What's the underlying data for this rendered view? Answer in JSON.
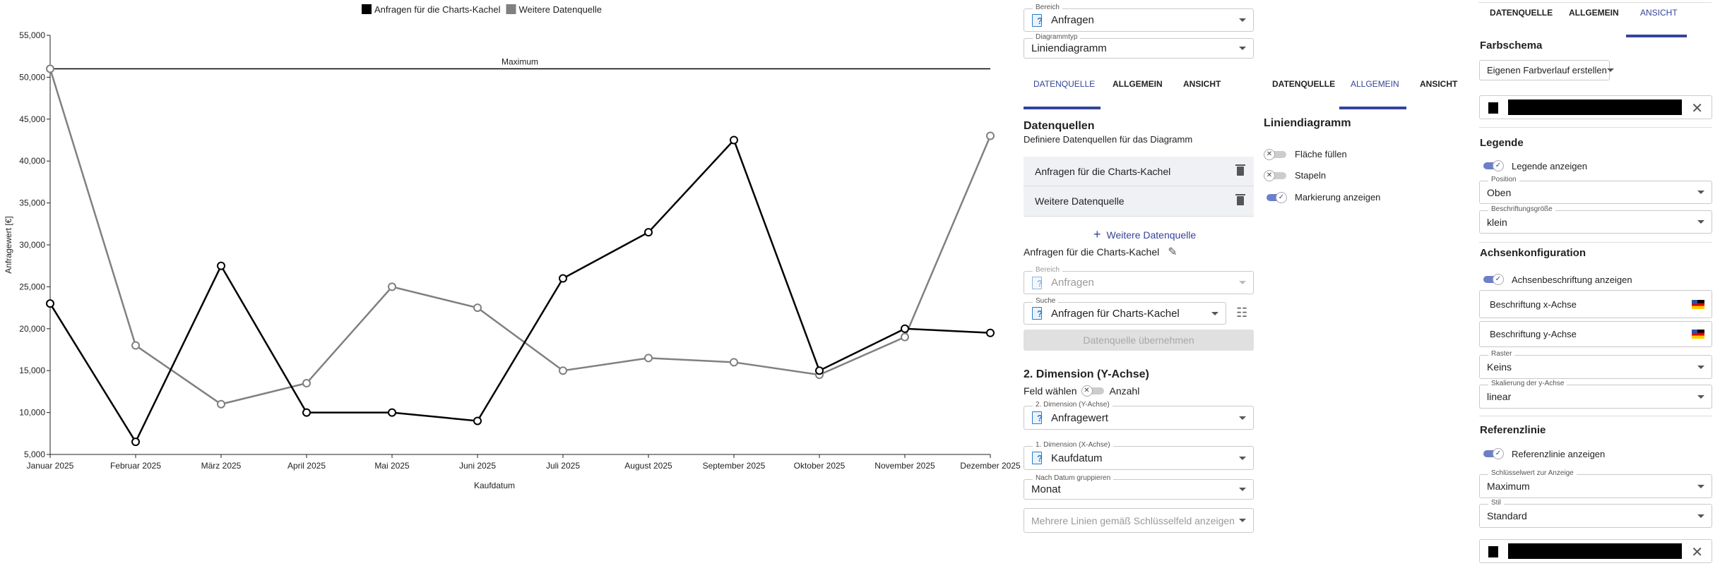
{
  "chart_data": {
    "type": "line",
    "categories": [
      "Januar 2025",
      "Februar 2025",
      "März 2025",
      "April 2025",
      "Mai 2025",
      "Juni 2025",
      "Juli 2025",
      "August 2025",
      "September 2025",
      "Oktober 2025",
      "November 2025",
      "Dezember 2025"
    ],
    "series": [
      {
        "name": "Anfragen für die Charts-Kachel",
        "color": "#000000",
        "values": [
          23000,
          6500,
          27500,
          10000,
          10000,
          9000,
          26000,
          31500,
          42500,
          15000,
          20000,
          19500
        ]
      },
      {
        "name": "Weitere Datenquelle",
        "color": "#808080",
        "values": [
          51000,
          18000,
          11000,
          13500,
          25000,
          22500,
          15000,
          16500,
          16000,
          14500,
          19000,
          43000
        ]
      }
    ],
    "xlabel": "Kaufdatum",
    "ylabel": "Anfragewert [€]",
    "ylim": [
      5000,
      55000
    ],
    "yticks": [
      "5,000",
      "10,000",
      "15,000",
      "20,000",
      "25,000",
      "30,000",
      "35,000",
      "40,000",
      "45,000",
      "50,000",
      "55,000"
    ],
    "reference_line": {
      "label": "Maximum",
      "value": 51000
    },
    "grid": false,
    "legend_position": "top",
    "markers": true
  },
  "panel1": {
    "bereich_label": "Bereich",
    "bereich_value": "Anfragen",
    "typ_label": "Diagrammtyp",
    "typ_value": "Liniendiagramm",
    "tabs": [
      "DATENQUELLE",
      "ALLGEMEIN",
      "ANSICHT"
    ],
    "heading": "Datenquellen",
    "subtitle": "Definiere Datenquellen für das Diagramm",
    "sources": [
      "Anfragen für die Charts-Kachel",
      "Weitere Datenquelle"
    ],
    "add_source": "Weitere Datenquelle",
    "selected_source": "Anfragen für die Charts-Kachel",
    "src_bereich_label": "Bereich",
    "src_bereich_value": "Anfragen",
    "suche_label": "Suche",
    "suche_value": "Anfragen für Charts-Kachel",
    "apply_button": "Datenquelle übernehmen",
    "dim_heading": "2. Dimension (Y-Achse)",
    "feld_waehlen": "Feld wählen",
    "anzahl": "Anzahl",
    "dim2_label": "2. Dimension (Y-Achse)",
    "dim2_value": "Anfragewert",
    "dim1_label": "1. Dimension (X-Achse)",
    "dim1_value": "Kaufdatum",
    "group_label": "Nach Datum gruppieren",
    "group_value": "Monat",
    "multi_placeholder": "Mehrere Linien gemäß Schlüsselfeld anzeigen"
  },
  "panel2": {
    "tabs": [
      "DATENQUELLE",
      "ALLGEMEIN",
      "ANSICHT"
    ],
    "heading": "Liniendiagramm",
    "toggles": [
      {
        "label": "Fläche füllen",
        "on": false
      },
      {
        "label": "Stapeln",
        "on": false
      },
      {
        "label": "Markierung anzeigen",
        "on": true
      }
    ]
  },
  "panel3": {
    "tabs": [
      "DATENQUELLE",
      "ALLGEMEIN",
      "ANSICHT"
    ],
    "farbschema": "Farbschema",
    "farbschema_value": "Eigenen Farbverlauf erstellen",
    "color1": "#000000",
    "legende": "Legende",
    "legende_toggle": "Legende anzeigen",
    "position_label": "Position",
    "position_value": "Oben",
    "size_label": "Beschriftungsgröße",
    "size_value": "klein",
    "achsen": "Achsenkonfiguration",
    "achsen_toggle": "Achsenbeschriftung anzeigen",
    "x_label": "Beschriftung x-Achse",
    "y_label": "Beschriftung y-Achse",
    "raster_label": "Raster",
    "raster_value": "Keins",
    "scale_label": "Skalierung der y-Achse",
    "scale_value": "linear",
    "ref": "Referenzlinie",
    "ref_toggle": "Referenzlinie anzeigen",
    "key_label": "Schlüsselwert zur Anzeige",
    "key_value": "Maximum",
    "style_label": "Stil",
    "style_value": "Standard",
    "color2": "#000000"
  },
  "accent": "#34449a"
}
